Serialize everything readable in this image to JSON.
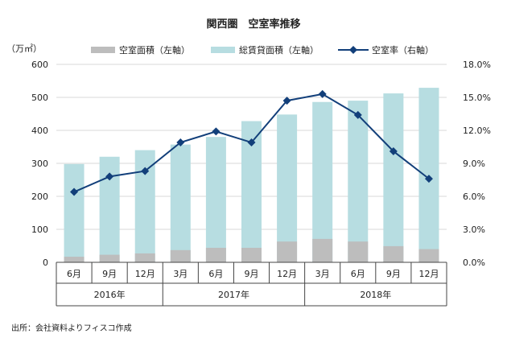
{
  "chart_data": {
    "type": "bar+line",
    "title": "関西圏　空室率推移",
    "left_axis_unit": "（万㎡）",
    "categories": [
      "6月",
      "9月",
      "12月",
      "3月",
      "6月",
      "9月",
      "12月",
      "3月",
      "6月",
      "9月",
      "12月"
    ],
    "year_groups": [
      {
        "label": "2016年",
        "count": 3
      },
      {
        "label": "2017年",
        "count": 4
      },
      {
        "label": "2018年",
        "count": 4
      }
    ],
    "left_ylim": [
      0,
      600
    ],
    "left_ticks": [
      "0",
      "100",
      "200",
      "300",
      "400",
      "500",
      "600"
    ],
    "right_ylim": [
      0,
      18
    ],
    "right_ticks": [
      "0.0%",
      "3.0%",
      "6.0%",
      "9.0%",
      "12.0%",
      "15.0%",
      "18.0%"
    ],
    "grid": true,
    "legend_position": "top",
    "series": [
      {
        "name": "空室面積（左軸）",
        "type": "bar",
        "color": "#bdbdbd",
        "values": [
          17,
          23,
          27,
          37,
          44,
          44,
          63,
          71,
          63,
          49,
          40
        ]
      },
      {
        "name": "総賃貸面積（左軸）",
        "type": "bar",
        "color": "#b7dde1",
        "values": [
          298,
          320,
          340,
          357,
          380,
          428,
          448,
          486,
          490,
          512,
          529
        ]
      },
      {
        "name": "空室率（右軸）",
        "type": "line",
        "color": "#123f7a",
        "values": [
          6.4,
          7.8,
          8.3,
          10.9,
          11.9,
          10.9,
          14.7,
          15.3,
          13.4,
          10.1,
          7.6
        ]
      }
    ],
    "source": "出所：会社資料よりフィスコ作成"
  }
}
